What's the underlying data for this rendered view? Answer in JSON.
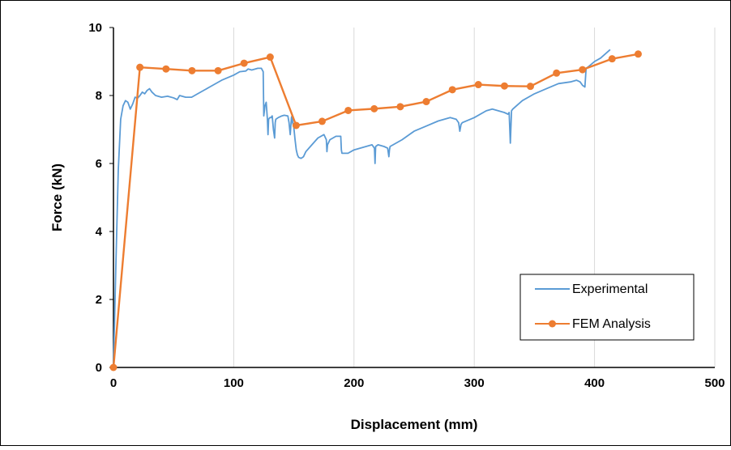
{
  "chart_data": {
    "type": "line",
    "title": "",
    "xlabel": "Displacement (mm)",
    "ylabel": "Force (kN)",
    "xlim": [
      0,
      500
    ],
    "ylim": [
      0,
      10
    ],
    "xticks": [
      "0",
      "100",
      "200",
      "300",
      "400",
      "500"
    ],
    "yticks": [
      "0",
      "2",
      "4",
      "6",
      "8",
      "10"
    ],
    "grid": "vertical",
    "legend_position": "bottom-right",
    "series": [
      {
        "name": "Experimental",
        "color": "#5B9BD5",
        "marker": "none",
        "x": [
          0,
          2,
          4,
          6,
          8,
          10,
          12,
          14,
          16,
          18,
          20,
          22,
          24,
          26,
          28,
          30,
          32,
          35,
          40,
          45,
          50,
          53,
          55,
          60,
          65,
          70,
          80,
          90,
          100,
          105,
          110,
          112,
          115,
          120,
          123,
          124.5,
          125,
          126,
          127,
          128,
          128.5,
          129,
          130,
          131,
          132,
          133,
          134,
          134.5,
          135,
          137,
          140,
          142,
          145,
          146,
          147,
          148,
          148.5,
          149,
          150,
          151,
          152,
          153,
          154,
          156,
          158,
          160,
          165,
          170,
          175,
          177,
          177.5,
          178,
          180,
          185,
          189,
          189.5,
          190,
          195,
          200,
          210,
          215,
          217,
          217.5,
          218,
          220,
          225,
          228,
          229,
          229.5,
          230,
          240,
          250,
          260,
          270,
          280,
          285,
          287,
          288,
          289,
          290,
          300,
          310,
          315,
          320,
          325,
          328,
          329,
          330,
          331,
          332,
          340,
          350,
          360,
          370,
          380,
          385,
          388,
          390,
          392,
          393,
          395,
          400,
          405,
          413
        ],
        "y": [
          0,
          3.0,
          5.8,
          7.3,
          7.7,
          7.85,
          7.8,
          7.6,
          7.75,
          7.95,
          7.92,
          8.0,
          8.1,
          8.05,
          8.15,
          8.2,
          8.1,
          8.0,
          7.95,
          7.98,
          7.93,
          7.88,
          8.0,
          7.95,
          7.95,
          8.05,
          8.25,
          8.45,
          8.6,
          8.7,
          8.72,
          8.78,
          8.75,
          8.8,
          8.8,
          8.7,
          7.4,
          7.7,
          7.8,
          7.3,
          6.85,
          7.3,
          7.35,
          7.35,
          7.4,
          7.0,
          6.75,
          7.2,
          7.3,
          7.35,
          7.4,
          7.42,
          7.4,
          7.2,
          6.85,
          7.35,
          7.4,
          7.2,
          7.05,
          6.7,
          6.4,
          6.25,
          6.18,
          6.15,
          6.2,
          6.35,
          6.55,
          6.75,
          6.85,
          6.7,
          6.35,
          6.55,
          6.7,
          6.8,
          6.8,
          6.4,
          6.3,
          6.3,
          6.4,
          6.5,
          6.55,
          6.45,
          6.0,
          6.5,
          6.55,
          6.5,
          6.45,
          6.2,
          6.4,
          6.5,
          6.7,
          6.95,
          7.1,
          7.25,
          7.35,
          7.3,
          7.2,
          6.95,
          7.15,
          7.2,
          7.35,
          7.55,
          7.6,
          7.55,
          7.5,
          7.45,
          7.5,
          6.6,
          7.55,
          7.6,
          7.85,
          8.05,
          8.2,
          8.35,
          8.4,
          8.45,
          8.4,
          8.3,
          8.25,
          8.8,
          8.85,
          9.0,
          9.1,
          9.35
        ]
      },
      {
        "name": "FEM Analysis",
        "color": "#ED7D31",
        "marker": "circle",
        "x": [
          0,
          22,
          43.7,
          65.3,
          87,
          108.6,
          130.3,
          151.9,
          173.5,
          195.2,
          216.8,
          238.5,
          260.1,
          281.8,
          303.4,
          325.1,
          346.7,
          368.4,
          390,
          414.6,
          436.3
        ],
        "y": [
          0,
          8.83,
          8.78,
          8.73,
          8.73,
          8.95,
          9.13,
          7.12,
          7.24,
          7.56,
          7.61,
          7.67,
          7.82,
          8.17,
          8.32,
          8.28,
          8.27,
          8.66,
          8.76,
          9.08,
          9.22
        ]
      }
    ]
  }
}
